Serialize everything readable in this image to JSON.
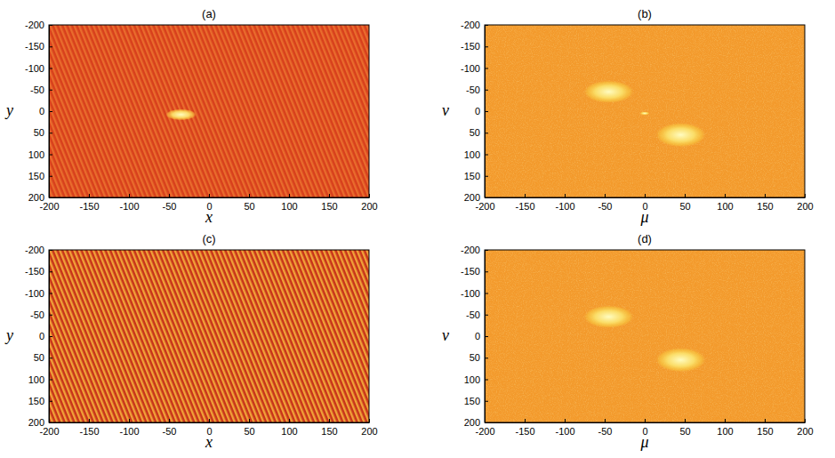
{
  "chart_data": [
    {
      "type": "image",
      "title": "(a)",
      "xlabel": "x",
      "ylabel": "y",
      "color": "#d8401c",
      "xlim": [
        -200,
        200
      ],
      "ylim": [
        -200,
        200
      ],
      "xticks": [
        -200,
        -150,
        -100,
        -50,
        0,
        50,
        100,
        150,
        200
      ],
      "yticks": [
        -200,
        -150,
        -100,
        -50,
        0,
        50,
        100,
        150,
        200
      ],
      "spots": [
        {
          "x": -35,
          "y": 8,
          "width": 38,
          "height": 26
        }
      ]
    },
    {
      "type": "spectrum",
      "title": "(b)",
      "xlabel": "μ",
      "ylabel": "ν",
      "color": "#f39a2c",
      "xlim": [
        -200,
        200
      ],
      "ylim": [
        -200,
        200
      ],
      "xticks": [
        -200,
        -150,
        -100,
        -50,
        0,
        50,
        100,
        150,
        200
      ],
      "yticks": [
        -200,
        -150,
        -100,
        -50,
        0,
        50,
        100,
        150,
        200
      ],
      "spots": [
        {
          "x": -45,
          "y": -45,
          "width": 62,
          "height": 52
        },
        {
          "x": 45,
          "y": 55,
          "width": 62,
          "height": 56
        },
        {
          "x": 0,
          "y": 5,
          "width": 12,
          "height": 8
        }
      ]
    },
    {
      "type": "image",
      "title": "(c)",
      "xlabel": "x",
      "ylabel": "y",
      "color": "#c8341a",
      "xlim": [
        -200,
        200
      ],
      "ylim": [
        -200,
        200
      ],
      "xticks": [
        -200,
        -150,
        -100,
        -50,
        0,
        50,
        100,
        150,
        200
      ],
      "yticks": [
        -200,
        -150,
        -100,
        -50,
        0,
        50,
        100,
        150,
        200
      ],
      "spots": []
    },
    {
      "type": "spectrum",
      "title": "(d)",
      "xlabel": "μ",
      "ylabel": "ν",
      "color": "#f39a2c",
      "xlim": [
        -200,
        200
      ],
      "ylim": [
        -200,
        200
      ],
      "xticks": [
        -200,
        -150,
        -100,
        -50,
        0,
        50,
        100,
        150,
        200
      ],
      "yticks": [
        -200,
        -150,
        -100,
        -50,
        0,
        50,
        100,
        150,
        200
      ],
      "spots": [
        {
          "x": -45,
          "y": -45,
          "width": 62,
          "height": 52
        },
        {
          "x": 45,
          "y": 55,
          "width": 62,
          "height": 56
        }
      ]
    }
  ]
}
